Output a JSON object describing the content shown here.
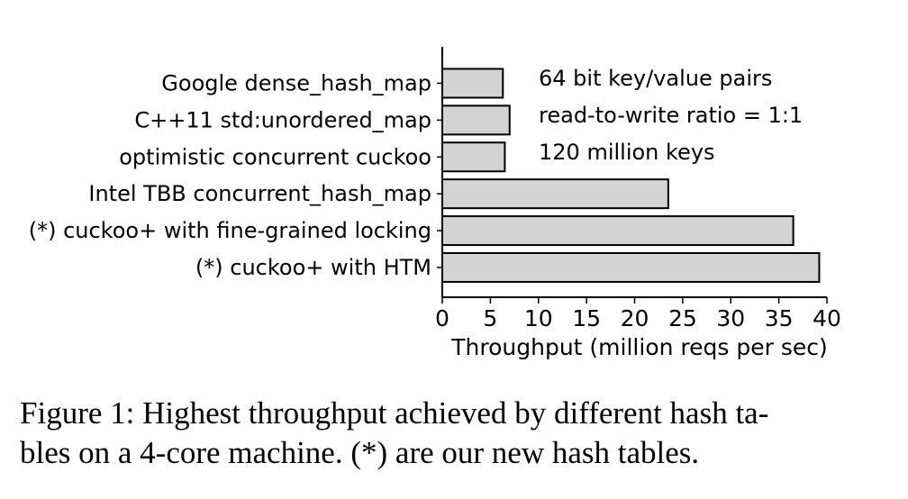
{
  "chart_data": {
    "type": "bar",
    "orientation": "horizontal",
    "categories": [
      "Google dense_hash_map",
      "C++11 std:unordered_map",
      "optimistic concurrent cuckoo",
      "Intel TBB concurrent_hash_map",
      "(*) cuckoo+ with fine-grained locking",
      "(*) cuckoo+ with HTM"
    ],
    "values": [
      6.3,
      7.0,
      6.5,
      23.5,
      36.5,
      39.2
    ],
    "xlabel": "Throughput (million reqs per sec)",
    "ylabel": "",
    "xlim": [
      0,
      40
    ],
    "xticks": [
      0,
      5,
      10,
      15,
      20,
      25,
      30,
      35,
      40
    ],
    "annotations": [
      "64 bit key/value pairs",
      "read-to-write ratio = 1:1",
      "120 million keys"
    ],
    "grid": false,
    "bar_color": "#d3d3d3",
    "edge_color": "#000000"
  },
  "caption": {
    "line1": "Figure 1: Highest throughput achieved by different hash ta-",
    "line2": "bles on a 4-core machine. (*) are our new hash tables."
  }
}
